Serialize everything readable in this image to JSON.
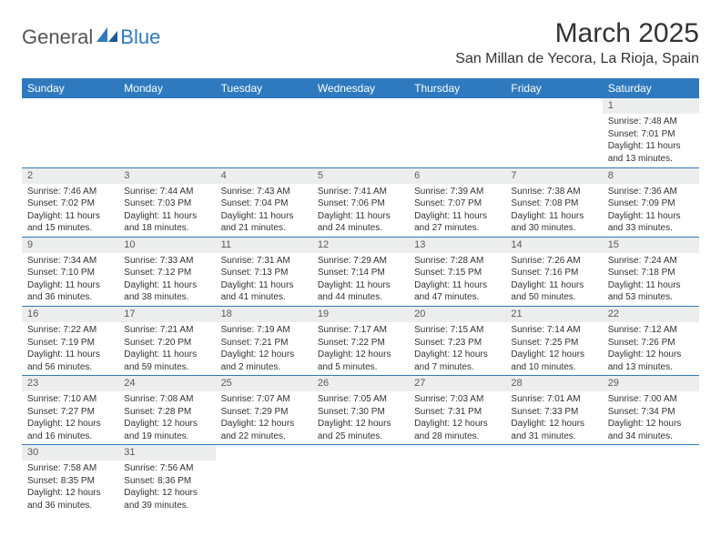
{
  "logo": {
    "general": "General",
    "blue": "Blue"
  },
  "title": "March 2025",
  "location": "San Millan de Yecora, La Rioja, Spain",
  "colors": {
    "header_bg": "#2f7abf",
    "header_fg": "#ffffff",
    "daynum_bg": "#eceded",
    "border": "#2f7abf"
  },
  "weekdays": [
    "Sunday",
    "Monday",
    "Tuesday",
    "Wednesday",
    "Thursday",
    "Friday",
    "Saturday"
  ],
  "weeks": [
    [
      null,
      null,
      null,
      null,
      null,
      null,
      {
        "n": "1",
        "sunrise": "7:48 AM",
        "sunset": "7:01 PM",
        "dl1": "11 hours",
        "dl2": "and 13 minutes."
      }
    ],
    [
      {
        "n": "2",
        "sunrise": "7:46 AM",
        "sunset": "7:02 PM",
        "dl1": "11 hours",
        "dl2": "and 15 minutes."
      },
      {
        "n": "3",
        "sunrise": "7:44 AM",
        "sunset": "7:03 PM",
        "dl1": "11 hours",
        "dl2": "and 18 minutes."
      },
      {
        "n": "4",
        "sunrise": "7:43 AM",
        "sunset": "7:04 PM",
        "dl1": "11 hours",
        "dl2": "and 21 minutes."
      },
      {
        "n": "5",
        "sunrise": "7:41 AM",
        "sunset": "7:06 PM",
        "dl1": "11 hours",
        "dl2": "and 24 minutes."
      },
      {
        "n": "6",
        "sunrise": "7:39 AM",
        "sunset": "7:07 PM",
        "dl1": "11 hours",
        "dl2": "and 27 minutes."
      },
      {
        "n": "7",
        "sunrise": "7:38 AM",
        "sunset": "7:08 PM",
        "dl1": "11 hours",
        "dl2": "and 30 minutes."
      },
      {
        "n": "8",
        "sunrise": "7:36 AM",
        "sunset": "7:09 PM",
        "dl1": "11 hours",
        "dl2": "and 33 minutes."
      }
    ],
    [
      {
        "n": "9",
        "sunrise": "7:34 AM",
        "sunset": "7:10 PM",
        "dl1": "11 hours",
        "dl2": "and 36 minutes."
      },
      {
        "n": "10",
        "sunrise": "7:33 AM",
        "sunset": "7:12 PM",
        "dl1": "11 hours",
        "dl2": "and 38 minutes."
      },
      {
        "n": "11",
        "sunrise": "7:31 AM",
        "sunset": "7:13 PM",
        "dl1": "11 hours",
        "dl2": "and 41 minutes."
      },
      {
        "n": "12",
        "sunrise": "7:29 AM",
        "sunset": "7:14 PM",
        "dl1": "11 hours",
        "dl2": "and 44 minutes."
      },
      {
        "n": "13",
        "sunrise": "7:28 AM",
        "sunset": "7:15 PM",
        "dl1": "11 hours",
        "dl2": "and 47 minutes."
      },
      {
        "n": "14",
        "sunrise": "7:26 AM",
        "sunset": "7:16 PM",
        "dl1": "11 hours",
        "dl2": "and 50 minutes."
      },
      {
        "n": "15",
        "sunrise": "7:24 AM",
        "sunset": "7:18 PM",
        "dl1": "11 hours",
        "dl2": "and 53 minutes."
      }
    ],
    [
      {
        "n": "16",
        "sunrise": "7:22 AM",
        "sunset": "7:19 PM",
        "dl1": "11 hours",
        "dl2": "and 56 minutes."
      },
      {
        "n": "17",
        "sunrise": "7:21 AM",
        "sunset": "7:20 PM",
        "dl1": "11 hours",
        "dl2": "and 59 minutes."
      },
      {
        "n": "18",
        "sunrise": "7:19 AM",
        "sunset": "7:21 PM",
        "dl1": "12 hours",
        "dl2": "and 2 minutes."
      },
      {
        "n": "19",
        "sunrise": "7:17 AM",
        "sunset": "7:22 PM",
        "dl1": "12 hours",
        "dl2": "and 5 minutes."
      },
      {
        "n": "20",
        "sunrise": "7:15 AM",
        "sunset": "7:23 PM",
        "dl1": "12 hours",
        "dl2": "and 7 minutes."
      },
      {
        "n": "21",
        "sunrise": "7:14 AM",
        "sunset": "7:25 PM",
        "dl1": "12 hours",
        "dl2": "and 10 minutes."
      },
      {
        "n": "22",
        "sunrise": "7:12 AM",
        "sunset": "7:26 PM",
        "dl1": "12 hours",
        "dl2": "and 13 minutes."
      }
    ],
    [
      {
        "n": "23",
        "sunrise": "7:10 AM",
        "sunset": "7:27 PM",
        "dl1": "12 hours",
        "dl2": "and 16 minutes."
      },
      {
        "n": "24",
        "sunrise": "7:08 AM",
        "sunset": "7:28 PM",
        "dl1": "12 hours",
        "dl2": "and 19 minutes."
      },
      {
        "n": "25",
        "sunrise": "7:07 AM",
        "sunset": "7:29 PM",
        "dl1": "12 hours",
        "dl2": "and 22 minutes."
      },
      {
        "n": "26",
        "sunrise": "7:05 AM",
        "sunset": "7:30 PM",
        "dl1": "12 hours",
        "dl2": "and 25 minutes."
      },
      {
        "n": "27",
        "sunrise": "7:03 AM",
        "sunset": "7:31 PM",
        "dl1": "12 hours",
        "dl2": "and 28 minutes."
      },
      {
        "n": "28",
        "sunrise": "7:01 AM",
        "sunset": "7:33 PM",
        "dl1": "12 hours",
        "dl2": "and 31 minutes."
      },
      {
        "n": "29",
        "sunrise": "7:00 AM",
        "sunset": "7:34 PM",
        "dl1": "12 hours",
        "dl2": "and 34 minutes."
      }
    ],
    [
      {
        "n": "30",
        "sunrise": "7:58 AM",
        "sunset": "8:35 PM",
        "dl1": "12 hours",
        "dl2": "and 36 minutes."
      },
      {
        "n": "31",
        "sunrise": "7:56 AM",
        "sunset": "8:36 PM",
        "dl1": "12 hours",
        "dl2": "and 39 minutes."
      },
      null,
      null,
      null,
      null,
      null
    ]
  ],
  "labels": {
    "sunrise": "Sunrise:",
    "sunset": "Sunset:",
    "daylight": "Daylight:"
  }
}
